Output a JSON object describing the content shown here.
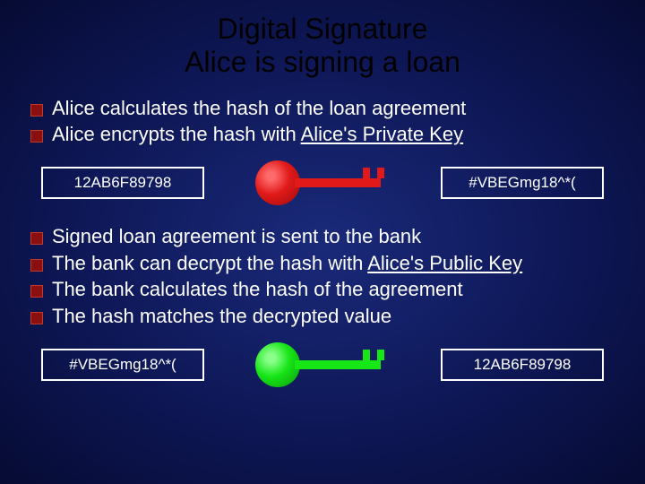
{
  "title_line1": "Digital Signature",
  "title_line2": "Alice is signing a loan",
  "bullets_top": [
    {
      "text": "Alice calculates the hash of the loan agreement"
    },
    {
      "text": "Alice encrypts the hash with ",
      "u": "Alice's Private Key"
    }
  ],
  "row1": {
    "left": "12AB6F89798",
    "key_color": "red",
    "right": "#VBEGmg18^*("
  },
  "bullets_bottom": [
    {
      "text": "Signed loan agreement is sent to the bank"
    },
    {
      "text": "The  bank can decrypt the hash with ",
      "u": "Alice's Public Key"
    },
    {
      "text": "The bank calculates the hash of the agreement"
    },
    {
      "text": "The hash matches the decrypted value"
    }
  ],
  "row2": {
    "left": "#VBEGmg18^*(",
    "key_color": "green",
    "right": "12AB6F89798"
  },
  "colors": {
    "bullet_marker": "#8a0f10",
    "key_red": "#e11919",
    "key_green": "#17e617",
    "box_border": "#ffffff",
    "title": "#000000"
  }
}
